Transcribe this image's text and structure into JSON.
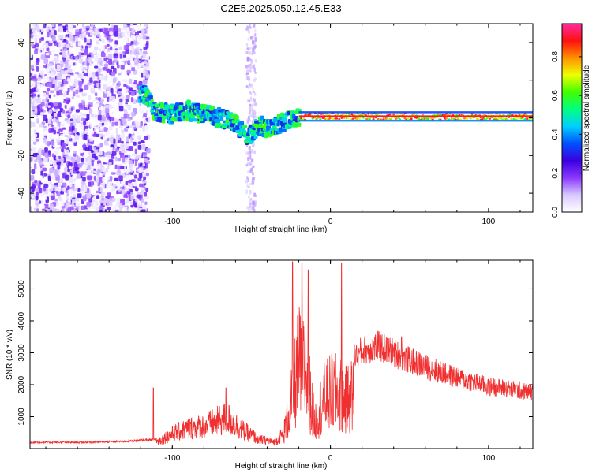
{
  "title": "C2E5.2025.050.12.45.E33",
  "chart_data": [
    {
      "type": "heatmap",
      "xlabel": "Height of straight line (km)",
      "ylabel": "Frequency (Hz)",
      "xlim": [
        -190,
        128
      ],
      "ylim": [
        -50,
        50
      ],
      "x_ticks": [
        -100,
        0,
        100
      ],
      "x_tick_labels": [
        "-100",
        "0",
        "100"
      ],
      "y_ticks": [
        -40,
        -20,
        0,
        20,
        40
      ],
      "y_tick_labels": [
        "-40",
        "-20",
        "0",
        "20",
        "40"
      ],
      "colorbar": {
        "label": "Normalized spectral amplitude",
        "range": [
          0,
          0.97
        ],
        "ticks": [
          0,
          0.2,
          0.4,
          0.6,
          0.8
        ],
        "tick_labels": [
          "0.0",
          "0.2",
          "0.4",
          "0.6",
          "0.8"
        ],
        "colormap": [
          "#ffffff",
          "#d8c8ff",
          "#8a38ff",
          "#3a00e0",
          "#0050ff",
          "#00d0ff",
          "#00ff80",
          "#40ff00",
          "#f0ff00",
          "#ff9000",
          "#ff1010",
          "#ff2aa0"
        ]
      },
      "ridge": [
        [
          -118,
          13
        ],
        [
          -110,
          3
        ],
        [
          -100,
          2
        ],
        [
          -90,
          4
        ],
        [
          -80,
          2
        ],
        [
          -70,
          0
        ],
        [
          -60,
          -3
        ],
        [
          -52,
          -10
        ],
        [
          -45,
          -4
        ],
        [
          -38,
          -6
        ],
        [
          -30,
          -2
        ],
        [
          -22,
          0
        ],
        [
          -10,
          1
        ],
        [
          0,
          1
        ],
        [
          20,
          1
        ],
        [
          60,
          0.5
        ],
        [
          100,
          0.5
        ],
        [
          128,
          0.5
        ]
      ],
      "noise_region": {
        "x": [
          -190,
          -115
        ],
        "y": [
          -50,
          50
        ]
      }
    },
    {
      "type": "line",
      "xlabel": "Height of straight line (km)",
      "ylabel": "SNR (10 * v/v)",
      "xlim": [
        -190,
        128
      ],
      "ylim": [
        0,
        5900
      ],
      "x_ticks": [
        -100,
        0,
        100
      ],
      "x_tick_labels": [
        "-100",
        "0",
        "100"
      ],
      "y_ticks": [
        1000,
        2000,
        3000,
        4000,
        5000
      ],
      "y_tick_labels": [
        "1000",
        "2000",
        "3000",
        "4000",
        "5000"
      ],
      "series": [
        {
          "color": "#f03030",
          "envelope": [
            [
              -190,
              200
            ],
            [
              -160,
              200
            ],
            [
              -130,
              230
            ],
            [
              -110,
              300
            ],
            [
              -100,
              650
            ],
            [
              -90,
              900
            ],
            [
              -80,
              1000
            ],
            [
              -70,
              1250
            ],
            [
              -65,
              1350
            ],
            [
              -55,
              800
            ],
            [
              -45,
              400
            ],
            [
              -35,
              300
            ],
            [
              -30,
              650
            ],
            [
              -25,
              2400
            ],
            [
              -20,
              4600
            ],
            [
              -15,
              4000
            ],
            [
              -10,
              1400
            ],
            [
              -5,
              2600
            ],
            [
              0,
              3000
            ],
            [
              5,
              3000
            ],
            [
              10,
              2600
            ],
            [
              15,
              3000
            ],
            [
              20,
              3150
            ],
            [
              30,
              3300
            ],
            [
              40,
              3100
            ],
            [
              50,
              2850
            ],
            [
              60,
              2650
            ],
            [
              70,
              2450
            ],
            [
              80,
              2300
            ],
            [
              90,
              2150
            ],
            [
              100,
              2000
            ],
            [
              110,
              1950
            ],
            [
              128,
              1800
            ]
          ],
          "spikes": [
            [
              -112,
              1900
            ],
            [
              -66,
              1900
            ],
            [
              -24,
              5850
            ],
            [
              -18,
              5800
            ],
            [
              -14,
              5600
            ],
            [
              7,
              5800
            ],
            [
              45,
              3500
            ]
          ]
        }
      ]
    }
  ]
}
